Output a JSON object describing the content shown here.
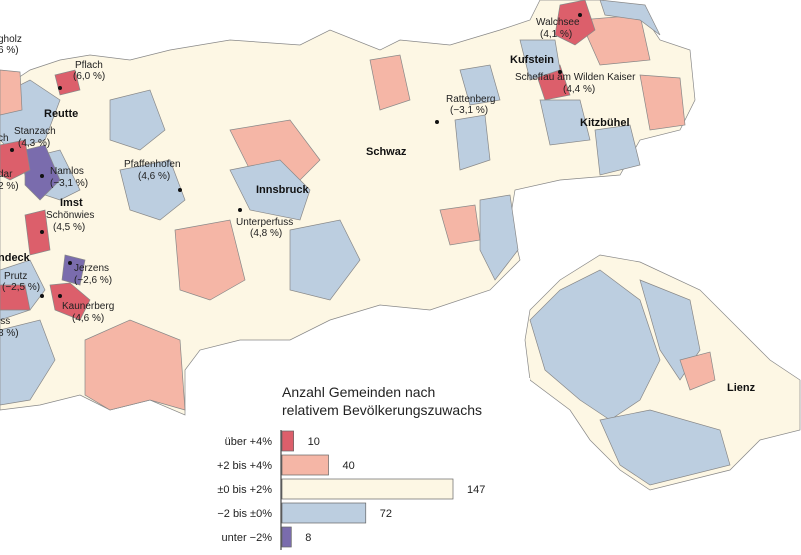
{
  "chart_data": {
    "type": "bar",
    "title": [
      "Anzahl Gemeinden nach",
      "relativem Bevölkerungszuwachs"
    ],
    "categories": [
      "über +4%",
      "+2 bis +4%",
      "±0 bis +2%",
      "−2 bis ±0%",
      "unter −2%"
    ],
    "values": [
      10,
      40,
      147,
      72,
      8
    ],
    "colors": [
      "#dc5f6b",
      "#f5b6a6",
      "#fdf7e4",
      "#bccee0",
      "#7a6cad"
    ]
  },
  "map": {
    "labels": [
      {
        "name": "gholz",
        "change": "6 %)"
      },
      {
        "name": "Pflach",
        "change": "(6,0 %)"
      },
      {
        "name": "Reutte"
      },
      {
        "name": "Stanzach",
        "change": "(4,3 %)"
      },
      {
        "name": "ch"
      },
      {
        "name": "Namlos",
        "change": "(−3,1 %)"
      },
      {
        "name": "dar",
        "change": "2 %)"
      },
      {
        "name": "Imst"
      },
      {
        "name": "Schönwies",
        "change": "(4,5 %)"
      },
      {
        "name": "ndeck"
      },
      {
        "name": "Prutz",
        "change": "(−2,5 %)"
      },
      {
        "name": "Jerzens",
        "change": "(−2,6 %)"
      },
      {
        "name": "Kaunerberg",
        "change": "(4,6 %)"
      },
      {
        "name": "iss",
        "change": "8 %)"
      },
      {
        "name": "Pfaffenhofen",
        "change": "(4,6 %)"
      },
      {
        "name": "Innsbruck"
      },
      {
        "name": "Unterperfuss",
        "change": "(4,8 %)"
      },
      {
        "name": "Schwaz"
      },
      {
        "name": "Rattenberg",
        "change": "(−3,1 %)"
      },
      {
        "name": "Kufstein"
      },
      {
        "name": "Walchsee",
        "change": "(4,1 %)"
      },
      {
        "name": "Scheffau am Wilden Kaiser",
        "change": "(4,4 %)"
      },
      {
        "name": "Kitzbühel"
      },
      {
        "name": "Lienz"
      }
    ]
  }
}
